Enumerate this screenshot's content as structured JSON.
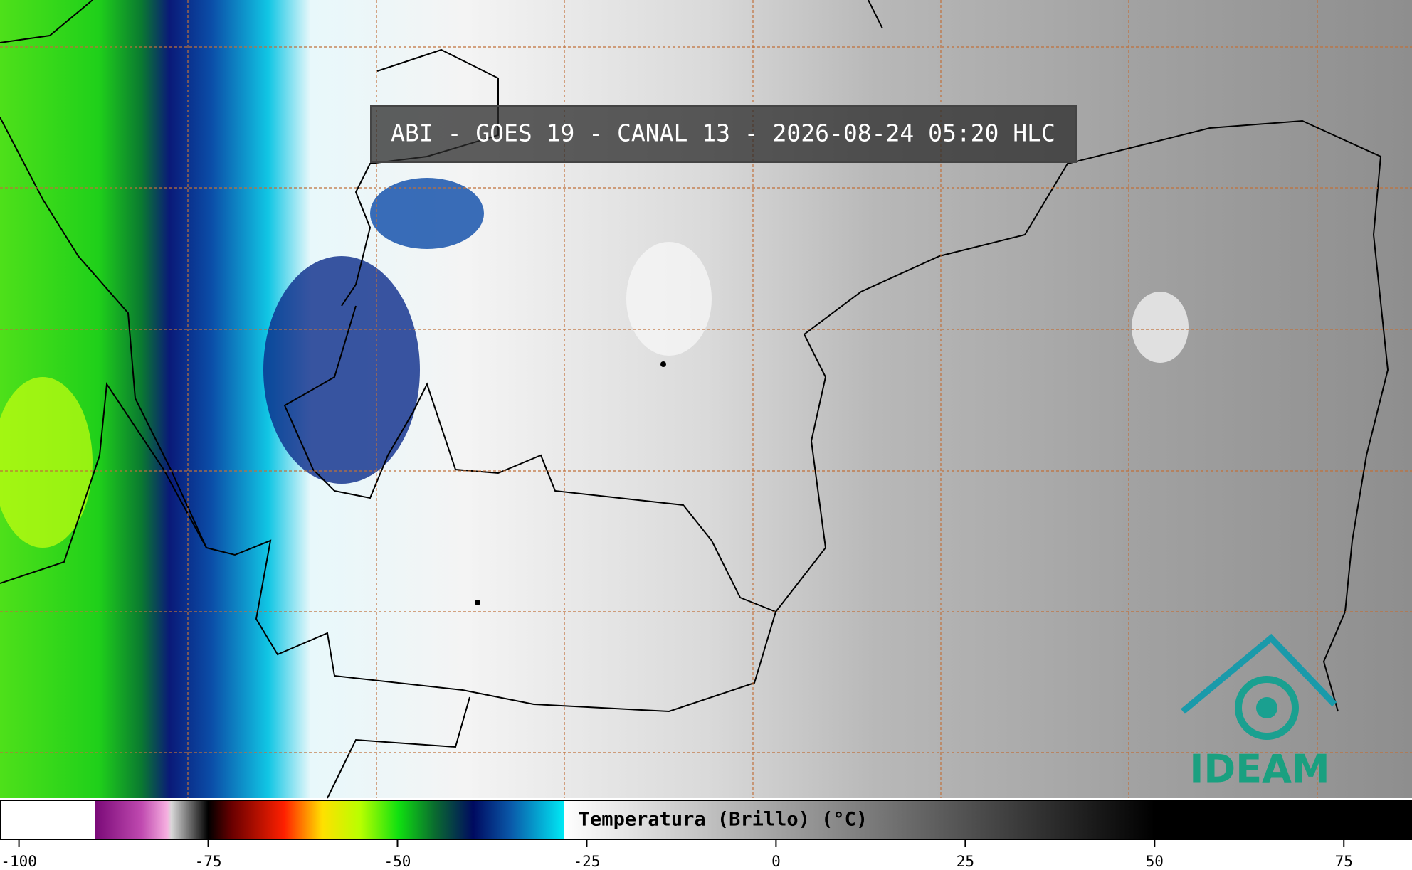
{
  "title": "ABI - GOES 19 - CANAL 13 - 2026-08-24 05:20 HLC",
  "logo": "IDEAM",
  "colorbar": {
    "label": "Temperatura (Brillo) (°C)",
    "lim": [
      -102.5,
      84
    ],
    "ticks": [
      -100,
      -75,
      -50,
      -25,
      0,
      25,
      50,
      75
    ]
  }
}
